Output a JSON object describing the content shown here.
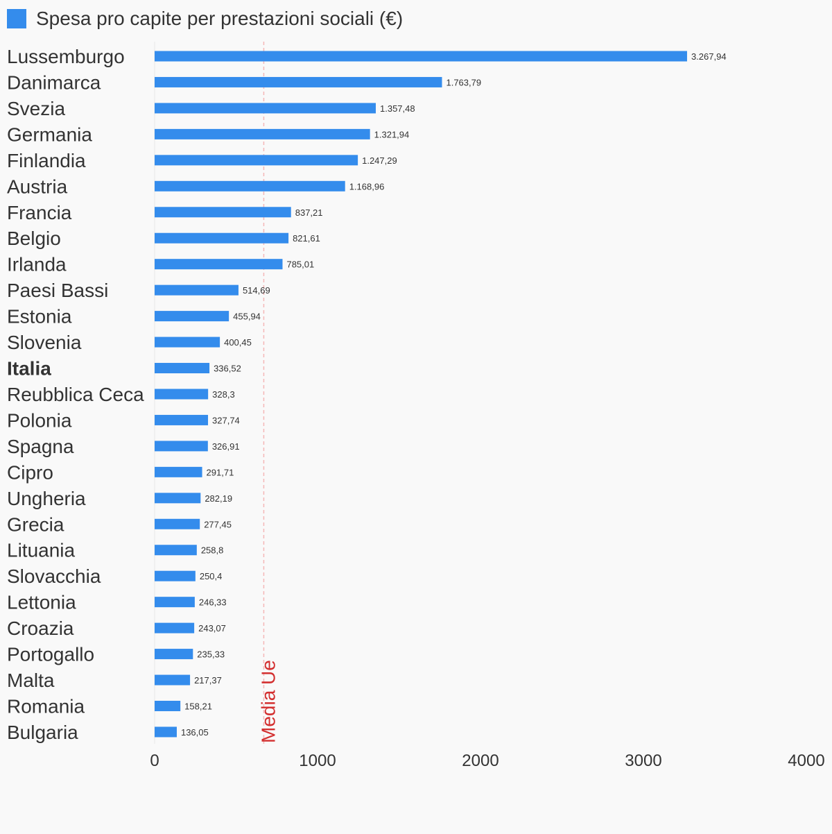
{
  "legend": {
    "label": "Spesa pro capite per prestazioni sociali (€)"
  },
  "colors": {
    "bar": "#348cec",
    "reference_line": "#f4b6b6",
    "reference_label": "#d32f2f",
    "text": "#333333"
  },
  "chart_data": {
    "type": "bar",
    "orientation": "horizontal",
    "categories": [
      "Lussemburgo",
      "Danimarca",
      "Svezia",
      "Germania",
      "Finlandia",
      "Austria",
      "Francia",
      "Belgio",
      "Irlanda",
      "Paesi Bassi",
      "Estonia",
      "Slovenia",
      "Italia",
      "Reubblica Ceca",
      "Polonia",
      "Spagna",
      "Cipro",
      "Ungheria",
      "Grecia",
      "Lituania",
      "Slovacchia",
      "Lettonia",
      "Croazia",
      "Portogallo",
      "Malta",
      "Romania",
      "Bulgaria"
    ],
    "highlighted_category": "Italia",
    "values": [
      3267.94,
      1763.79,
      1357.48,
      1321.94,
      1247.29,
      1168.96,
      837.21,
      821.61,
      785.01,
      514.69,
      455.94,
      400.45,
      336.52,
      328.3,
      327.74,
      326.91,
      291.71,
      282.19,
      277.45,
      258.8,
      250.4,
      246.33,
      243.07,
      235.33,
      217.37,
      158.21,
      136.05
    ],
    "value_labels": [
      "3.267,94",
      "1.763,79",
      "1.357,48",
      "1.321,94",
      "1.247,29",
      "1.168,96",
      "837,21",
      "821,61",
      "785,01",
      "514,69",
      "455,94",
      "400,45",
      "336,52",
      "328,3",
      "327,74",
      "326,91",
      "291,71",
      "282,19",
      "277,45",
      "258,8",
      "250,4",
      "246,33",
      "243,07",
      "235,33",
      "217,37",
      "158,21",
      "136,05"
    ],
    "series": [
      {
        "name": "Spesa pro capite per prestazioni sociali (€)"
      }
    ],
    "xlim": [
      0,
      4000
    ],
    "xticks": [
      0,
      1000,
      2000,
      3000,
      4000
    ],
    "xtick_labels": [
      "0",
      "1000",
      "2000",
      "3000",
      "4000"
    ],
    "reference_line": {
      "label": "Media Ue",
      "value": 670
    },
    "legend_position": "top-left",
    "grid": false
  }
}
